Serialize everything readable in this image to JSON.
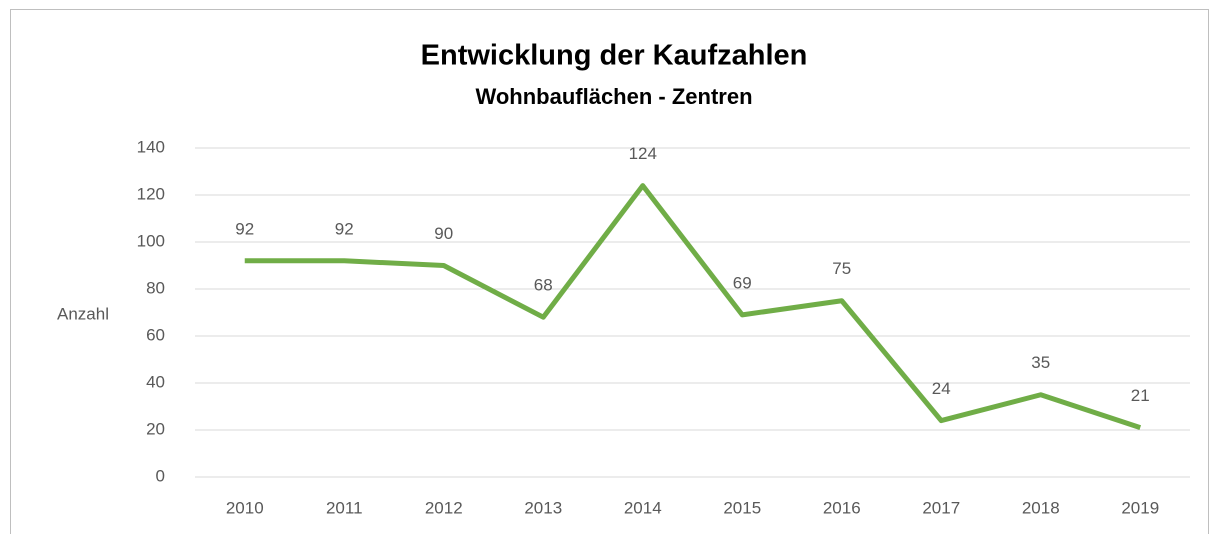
{
  "chart_data": {
    "type": "line",
    "title": "Entwicklung der Kaufzahlen",
    "subtitle": "Wohnbauflächen - Zentren",
    "y_label": "Anzahl",
    "categories": [
      "2010",
      "2011",
      "2012",
      "2013",
      "2014",
      "2015",
      "2016",
      "2017",
      "2018",
      "2019"
    ],
    "series": [
      {
        "name": "Anzahl",
        "color": "#70ad47",
        "values": [
          92,
          92,
          90,
          68,
          124,
          69,
          75,
          24,
          35,
          21
        ]
      }
    ],
    "ylim": [
      0,
      140
    ],
    "yticks": [
      0,
      20,
      40,
      60,
      80,
      100,
      120,
      140
    ],
    "grid": true
  }
}
